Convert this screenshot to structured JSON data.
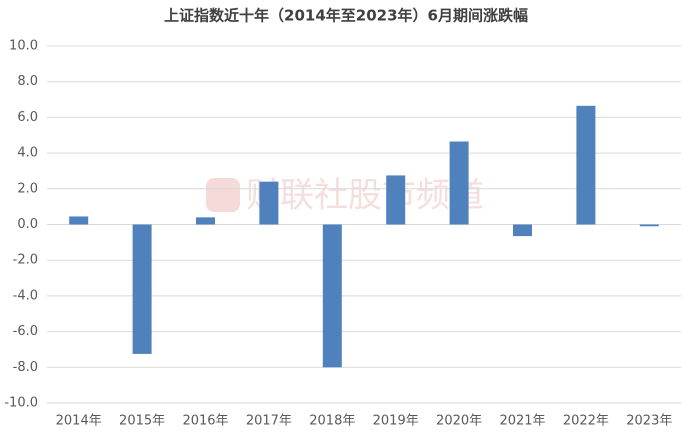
{
  "chart_data": {
    "type": "bar",
    "title": "上证指数近十年（2014年至2023年）6月期间涨跌幅",
    "watermark": "财联社股市频道",
    "categories": [
      "2014年",
      "2015年",
      "2016年",
      "2017年",
      "2018年",
      "2019年",
      "2020年",
      "2021年",
      "2022年",
      "2023年"
    ],
    "values": [
      0.45,
      -7.25,
      0.4,
      2.4,
      -8.0,
      2.75,
      4.65,
      -0.65,
      6.65,
      -0.1
    ],
    "color": "#4f81bd",
    "ylim": [
      -10,
      10
    ],
    "yticks": [
      {
        "value": -10,
        "label": "-10.0"
      },
      {
        "value": -8,
        "label": "-8.0"
      },
      {
        "value": -6,
        "label": "-6.0"
      },
      {
        "value": -4,
        "label": "-4.0"
      },
      {
        "value": -2,
        "label": "-2.0"
      },
      {
        "value": 0,
        "label": "0.0"
      },
      {
        "value": 2,
        "label": "2.0"
      },
      {
        "value": 4,
        "label": "4.0"
      },
      {
        "value": 6,
        "label": "6.0"
      },
      {
        "value": 8,
        "label": "8.0"
      },
      {
        "value": 10,
        "label": "10.0"
      }
    ],
    "grid": true
  }
}
